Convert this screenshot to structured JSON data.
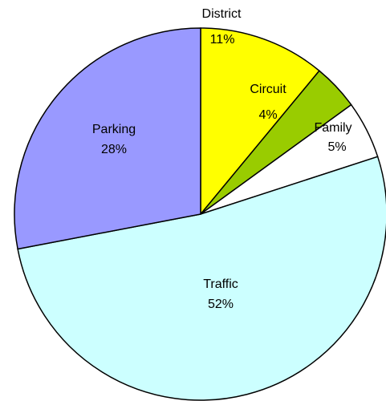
{
  "chart_data": {
    "type": "pie",
    "categories": [
      "District",
      "Circuit",
      "Family",
      "Traffic",
      "Parking"
    ],
    "values": [
      11,
      4,
      5,
      52,
      28
    ],
    "value_labels": [
      "11%",
      "4%",
      "5%",
      "52%",
      "28%"
    ],
    "colors": [
      "#ffff00",
      "#99cc00",
      "#ffffff",
      "#ccffff",
      "#9999ff"
    ]
  }
}
